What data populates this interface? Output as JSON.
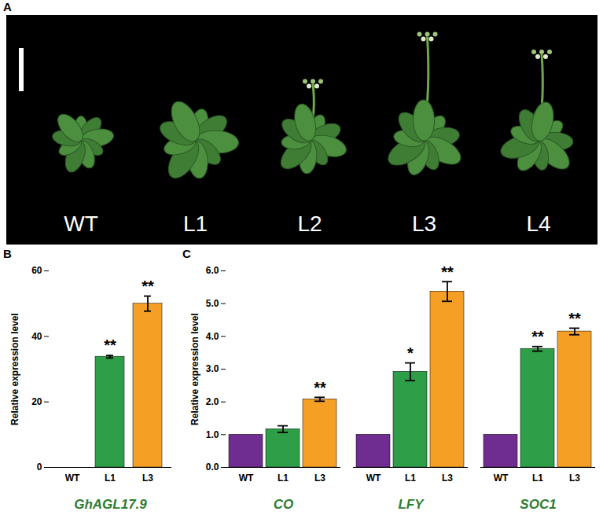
{
  "photo": {
    "panel_label": "A",
    "labels": [
      "WT",
      "L1",
      "L2",
      "L3",
      "L4"
    ]
  },
  "chart_data": [
    {
      "panel_label": "B",
      "type": "bar",
      "categories": [
        "WT",
        "L1",
        "L3"
      ],
      "values": [
        0,
        33.8,
        50.0
      ],
      "errors": [
        null,
        0.4,
        2.3
      ],
      "significance": [
        null,
        "**",
        "**"
      ],
      "colors": [
        "#6f2c91",
        "#2e9e48",
        "#f5a024"
      ],
      "xlabel": "GhAGL17.9",
      "ylabel": "Relative expression level",
      "ylim": [
        0,
        60
      ],
      "yticks": [
        0,
        20,
        40,
        60
      ]
    },
    {
      "panel_label": "C",
      "type": "bar",
      "categories": [
        "CO",
        "LFY",
        "SOC1"
      ],
      "series": [
        {
          "name": "WT",
          "color": "#6f2c91",
          "values": [
            1,
            1,
            1
          ],
          "errors": [
            null,
            null,
            null
          ],
          "significance": [
            null,
            null,
            null
          ]
        },
        {
          "name": "L1",
          "color": "#2e9e48",
          "values": [
            1.17,
            2.92,
            3.62
          ],
          "errors": [
            0.1,
            0.27,
            0.07
          ],
          "significance": [
            null,
            "*",
            "**"
          ]
        },
        {
          "name": "L3",
          "color": "#f5a024",
          "values": [
            2.08,
            5.37,
            4.15
          ],
          "errors": [
            0.06,
            0.3,
            0.1
          ],
          "significance": [
            "**",
            "**",
            "**"
          ]
        }
      ],
      "ylabel": "Relative expression level",
      "ylim": [
        0,
        6
      ],
      "yticks": [
        0,
        1,
        2,
        3,
        4,
        5,
        6
      ]
    }
  ]
}
